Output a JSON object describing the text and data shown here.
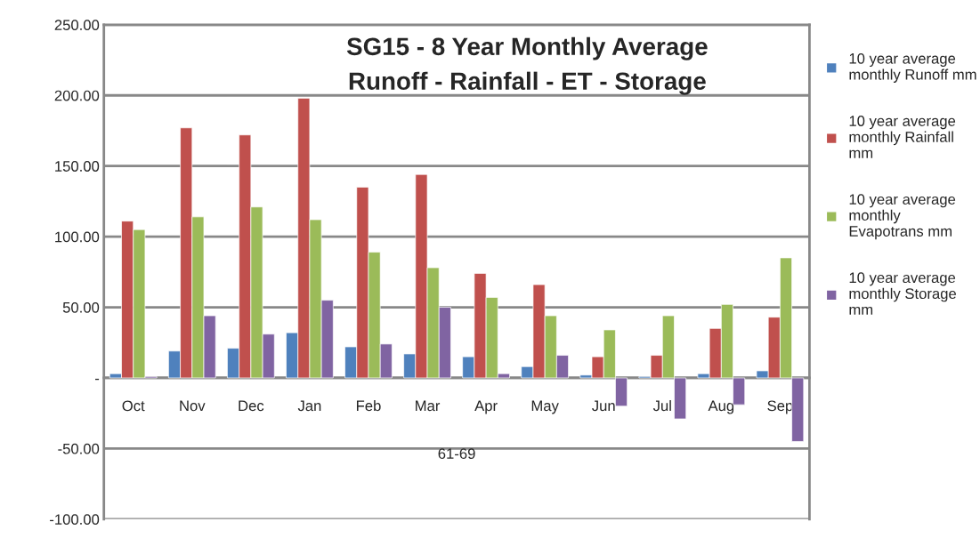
{
  "chart_data": {
    "type": "bar",
    "title": "SG15 - 8 Year Monthly Average",
    "subtitle": "Runoff - Rainfall - ET - Storage",
    "xlabel": "61-69",
    "categories": [
      "Oct",
      "Nov",
      "Dec",
      "Jan",
      "Feb",
      "Mar",
      "Apr",
      "May",
      "Jun",
      "Jul",
      "Aug",
      "Sep"
    ],
    "series": [
      {
        "name": "10 year average monthly Runoff mm",
        "color": "#4f81bd",
        "values": [
          3,
          19,
          21,
          32,
          22,
          17,
          15,
          8,
          2,
          1,
          3,
          5
        ]
      },
      {
        "name": "10 year average monthly Rainfall mm",
        "color": "#c0504d",
        "values": [
          111,
          177,
          172,
          198,
          135,
          144,
          74,
          66,
          15,
          16,
          35,
          43
        ]
      },
      {
        "name": "10 year average monthly Evapotrans mm",
        "color": "#9bbb59",
        "values": [
          105,
          114,
          121,
          112,
          89,
          78,
          57,
          44,
          34,
          44,
          52,
          85
        ]
      },
      {
        "name": "10 year average monthly Storage mm",
        "color": "#8064a2",
        "values": [
          1,
          44,
          31,
          55,
          24,
          50,
          3,
          16,
          -20,
          -29,
          -19,
          -45
        ]
      }
    ],
    "ylim": [
      -100,
      250
    ],
    "yticks": [
      {
        "value": -100,
        "label": "-100.00"
      },
      {
        "value": -50,
        "label": "-50.00"
      },
      {
        "value": 0,
        "label": "-"
      },
      {
        "value": 50,
        "label": "50.00"
      },
      {
        "value": 100,
        "label": "100.00"
      },
      {
        "value": 150,
        "label": "150.00"
      },
      {
        "value": 200,
        "label": "200.00"
      },
      {
        "value": 250,
        "label": "250.00"
      }
    ],
    "grid": "y",
    "legend": "right"
  }
}
